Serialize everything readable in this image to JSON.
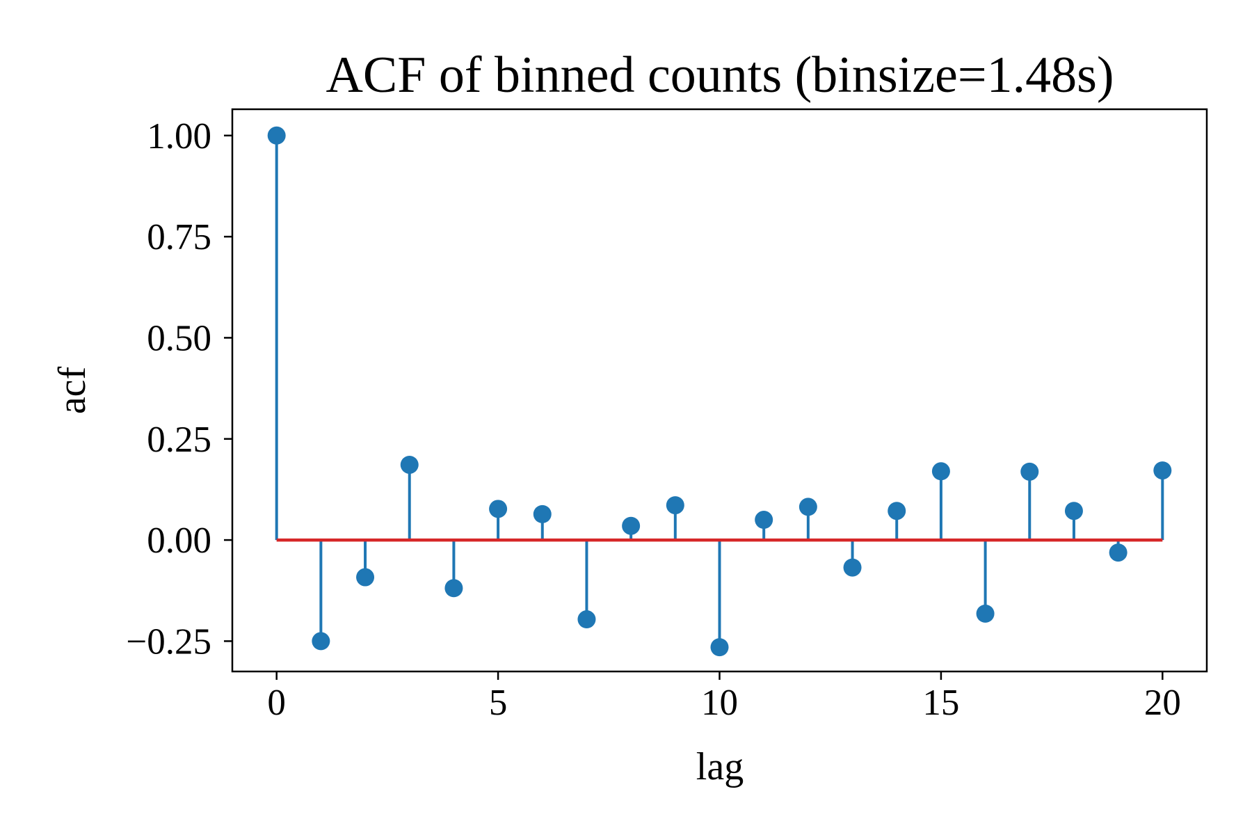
{
  "chart_data": {
    "type": "stem",
    "title": "ACF of binned counts (binsize=1.48s)",
    "xlabel": "lag",
    "ylabel": "acf",
    "xlim": [
      -1,
      21
    ],
    "ylim": [
      -0.325,
      1.065
    ],
    "xticks": [
      0,
      5,
      10,
      15,
      20
    ],
    "xtick_labels": [
      "0",
      "5",
      "10",
      "15",
      "20"
    ],
    "yticks": [
      -0.25,
      0.0,
      0.25,
      0.5,
      0.75,
      1.0
    ],
    "ytick_labels": [
      "−0.25",
      "0.00",
      "0.25",
      "0.50",
      "0.75",
      "1.00"
    ],
    "grid": false,
    "legend": "none",
    "x": [
      0,
      1,
      2,
      3,
      4,
      5,
      6,
      7,
      8,
      9,
      10,
      11,
      12,
      13,
      14,
      15,
      16,
      17,
      18,
      19,
      20
    ],
    "values": [
      1.0,
      -0.25,
      -0.092,
      0.186,
      -0.119,
      0.077,
      0.064,
      -0.196,
      0.035,
      0.086,
      -0.265,
      0.05,
      0.082,
      -0.068,
      0.072,
      0.17,
      -0.182,
      0.169,
      0.072,
      -0.031,
      0.172
    ],
    "colors": {
      "marker": "#1f77b4",
      "stem": "#1f77b4",
      "baseline": "#d62728",
      "axes": "#000000"
    }
  }
}
